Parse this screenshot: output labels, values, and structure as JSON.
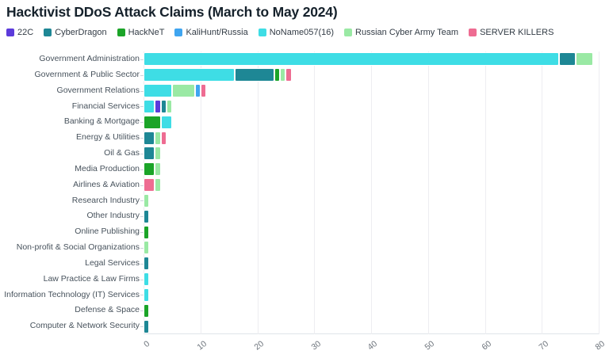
{
  "header": {
    "title": "Hacktivist DDoS Attack Claims (March to May 2024)"
  },
  "chart_data": {
    "type": "bar",
    "orientation": "horizontal",
    "stacked": true,
    "title": "Hacktivist DDoS Attack Claims (March to May 2024)",
    "xlabel": "",
    "ylabel": "",
    "xlim": [
      0,
      80
    ],
    "xticks": [
      "0",
      "10",
      "20",
      "30",
      "40",
      "50",
      "60",
      "70",
      "80"
    ],
    "grid": true,
    "legend_position": "top-left",
    "groups": [
      {
        "name": "22C",
        "color": "#5c3bdb"
      },
      {
        "name": "CyberDragon",
        "color": "#1e8795"
      },
      {
        "name": "HackNeT",
        "color": "#1ba428"
      },
      {
        "name": "KaliHunt/Russia",
        "color": "#3fa5f0"
      },
      {
        "name": "NoName057(16)",
        "color": "#3edde5"
      },
      {
        "name": "Russian Cyber Army Team",
        "color": "#9ae9a4"
      },
      {
        "name": "SERVER KILLERS",
        "color": "#ee6c92"
      }
    ],
    "categories": [
      "Government Administration",
      "Government & Public Sector",
      "Government Relations",
      "Financial Services",
      "Banking & Mortgage",
      "Energy & Utilities",
      "Oil & Gas",
      "Media Production",
      "Airlines & Aviation",
      "Research Industry",
      "Other Industry",
      "Online Publishing",
      "Non-profit & Social Organizations",
      "Legal Services",
      "Law Practice & Law Firms",
      "Information Technology (IT) Services",
      "Defense & Space",
      "Computer & Network Security"
    ],
    "rows": [
      {
        "category": "Government Administration",
        "segments": [
          {
            "group": "NoName057(16)",
            "value": 73
          },
          {
            "group": "CyberDragon",
            "value": 3
          },
          {
            "group": "Russian Cyber Army Team",
            "value": 3
          }
        ]
      },
      {
        "category": "Government & Public Sector",
        "segments": [
          {
            "group": "NoName057(16)",
            "value": 16
          },
          {
            "group": "CyberDragon",
            "value": 7
          },
          {
            "group": "HackNeT",
            "value": 1
          },
          {
            "group": "Russian Cyber Army Team",
            "value": 1
          },
          {
            "group": "SERVER KILLERS",
            "value": 1
          }
        ]
      },
      {
        "category": "Government Relations",
        "segments": [
          {
            "group": "NoName057(16)",
            "value": 5
          },
          {
            "group": "Russian Cyber Army Team",
            "value": 4
          },
          {
            "group": "KaliHunt/Russia",
            "value": 1
          },
          {
            "group": "SERVER KILLERS",
            "value": 1
          }
        ]
      },
      {
        "category": "Financial Services",
        "segments": [
          {
            "group": "NoName057(16)",
            "value": 2
          },
          {
            "group": "22C",
            "value": 1
          },
          {
            "group": "CyberDragon",
            "value": 1
          },
          {
            "group": "Russian Cyber Army Team",
            "value": 1
          }
        ]
      },
      {
        "category": "Banking & Mortgage",
        "segments": [
          {
            "group": "HackNeT",
            "value": 3
          },
          {
            "group": "NoName057(16)",
            "value": 2
          }
        ]
      },
      {
        "category": "Energy & Utilities",
        "segments": [
          {
            "group": "CyberDragon",
            "value": 2
          },
          {
            "group": "Russian Cyber Army Team",
            "value": 1
          },
          {
            "group": "SERVER KILLERS",
            "value": 1
          }
        ]
      },
      {
        "category": "Oil & Gas",
        "segments": [
          {
            "group": "CyberDragon",
            "value": 2
          },
          {
            "group": "Russian Cyber Army Team",
            "value": 1
          }
        ]
      },
      {
        "category": "Media Production",
        "segments": [
          {
            "group": "HackNeT",
            "value": 2
          },
          {
            "group": "Russian Cyber Army Team",
            "value": 1
          }
        ]
      },
      {
        "category": "Airlines & Aviation",
        "segments": [
          {
            "group": "SERVER KILLERS",
            "value": 2
          },
          {
            "group": "Russian Cyber Army Team",
            "value": 1
          }
        ]
      },
      {
        "category": "Research Industry",
        "segments": [
          {
            "group": "Russian Cyber Army Team",
            "value": 1
          }
        ]
      },
      {
        "category": "Other Industry",
        "segments": [
          {
            "group": "CyberDragon",
            "value": 1
          }
        ]
      },
      {
        "category": "Online Publishing",
        "segments": [
          {
            "group": "HackNeT",
            "value": 1
          }
        ]
      },
      {
        "category": "Non-profit & Social Organizations",
        "segments": [
          {
            "group": "Russian Cyber Army Team",
            "value": 1
          }
        ]
      },
      {
        "category": "Legal Services",
        "segments": [
          {
            "group": "CyberDragon",
            "value": 1
          }
        ]
      },
      {
        "category": "Law Practice & Law Firms",
        "segments": [
          {
            "group": "NoName057(16)",
            "value": 1
          }
        ]
      },
      {
        "category": "Information Technology (IT) Services",
        "segments": [
          {
            "group": "NoName057(16)",
            "value": 1
          }
        ]
      },
      {
        "category": "Defense & Space",
        "segments": [
          {
            "group": "HackNeT",
            "value": 1
          }
        ]
      },
      {
        "category": "Computer & Network Security",
        "segments": [
          {
            "group": "CyberDragon",
            "value": 1
          }
        ]
      }
    ]
  }
}
